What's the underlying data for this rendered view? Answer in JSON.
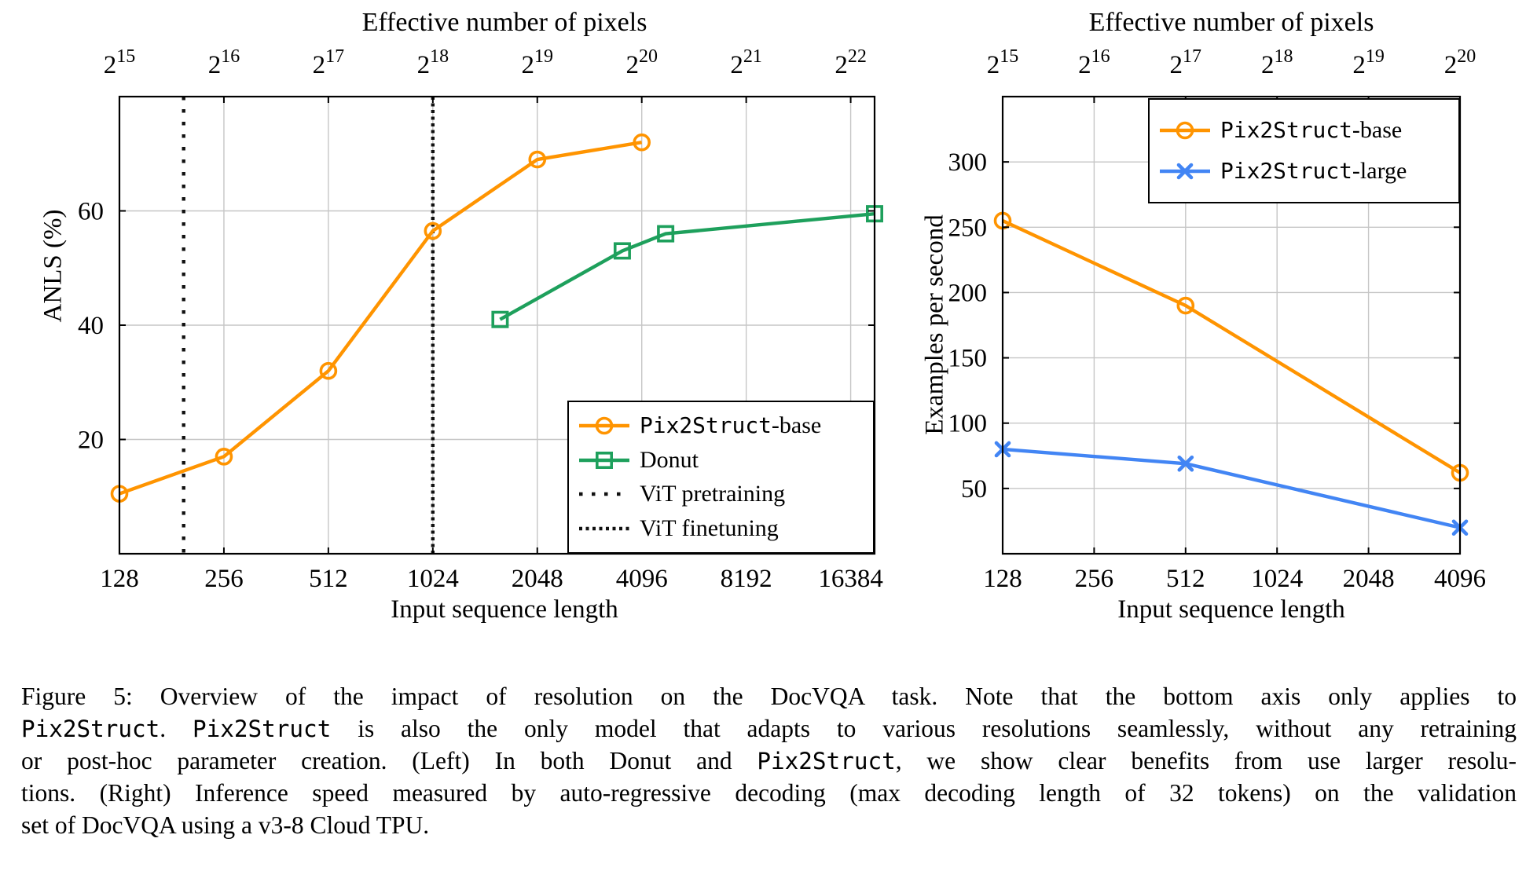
{
  "chart_data": [
    {
      "id": "left",
      "type": "line",
      "title": "Effective number of pixels",
      "xlabel": "Input sequence length",
      "ylabel": "ANLS (%)",
      "x_scale": "log2",
      "x_range": [
        128,
        19200
      ],
      "y_range": [
        0,
        80
      ],
      "x_ticks": [
        128,
        256,
        512,
        1024,
        2048,
        4096,
        8192,
        16384
      ],
      "y_ticks": [
        20,
        40,
        60
      ],
      "top_axis_exponents": [
        15,
        16,
        17,
        18,
        19,
        20,
        21,
        22
      ],
      "grid": true,
      "grid_color": "#c6c6c6",
      "series": [
        {
          "name": "Pix2Struct-base",
          "color": "#FF9400",
          "marker": "circle",
          "x": [
            128,
            256,
            512,
            1024,
            2048,
            4096
          ],
          "y": [
            10.5,
            17,
            32,
            56.5,
            69,
            72
          ]
        },
        {
          "name": "Donut",
          "color": "#1EA05C",
          "marker": "square",
          "x": [
            1600,
            3600,
            4800,
            19200
          ],
          "y": [
            41,
            53,
            56,
            59.5
          ]
        }
      ],
      "vlines": [
        {
          "name": "ViT pretraining",
          "x": 196,
          "style": "sparse-dotted",
          "color": "#111111"
        },
        {
          "name": "ViT finetuning",
          "x": 1024,
          "style": "dense-dotted",
          "color": "#111111"
        }
      ],
      "legend": {
        "position": "south-east",
        "rows": [
          {
            "kind": "series",
            "index": 0,
            "parts": [
              {
                "text": "Pix2Struct",
                "mono": true
              },
              {
                "text": "-base",
                "mono": false
              }
            ]
          },
          {
            "kind": "series",
            "index": 1,
            "parts": [
              {
                "text": "Donut",
                "mono": false
              }
            ]
          },
          {
            "kind": "vline",
            "index": 0,
            "parts": [
              {
                "text": "ViT pretraining",
                "mono": false
              }
            ]
          },
          {
            "kind": "vline",
            "index": 1,
            "parts": [
              {
                "text": "ViT finetuning",
                "mono": false
              }
            ]
          }
        ]
      }
    },
    {
      "id": "right",
      "type": "line",
      "title": "Effective number of pixels",
      "xlabel": "Input sequence length",
      "ylabel": "Examples per second",
      "x_scale": "log2",
      "x_range": [
        128,
        4096
      ],
      "y_range": [
        0,
        350
      ],
      "x_ticks": [
        128,
        256,
        512,
        1024,
        2048,
        4096
      ],
      "y_ticks": [
        50,
        100,
        150,
        200,
        250,
        300
      ],
      "top_axis_exponents": [
        15,
        16,
        17,
        18,
        19,
        20
      ],
      "grid": true,
      "grid_color": "#c6c6c6",
      "series": [
        {
          "name": "Pix2Struct-base",
          "color": "#FF9400",
          "marker": "circle",
          "x": [
            128,
            512,
            4096
          ],
          "y": [
            255,
            190,
            62
          ]
        },
        {
          "name": "Pix2Struct-large",
          "color": "#4285F4",
          "marker": "x",
          "x": [
            128,
            512,
            4096
          ],
          "y": [
            80,
            69,
            20
          ]
        }
      ],
      "vlines": [],
      "legend": {
        "position": "north-east",
        "rows": [
          {
            "kind": "series",
            "index": 0,
            "parts": [
              {
                "text": "Pix2Struct",
                "mono": true
              },
              {
                "text": "-base",
                "mono": false
              }
            ]
          },
          {
            "kind": "series",
            "index": 1,
            "parts": [
              {
                "text": "Pix2Struct",
                "mono": true
              },
              {
                "text": "-large",
                "mono": false
              }
            ]
          }
        ]
      }
    }
  ],
  "caption": {
    "figure_label": "Figure 5:",
    "lines": [
      {
        "justify": true,
        "segments": [
          {
            "text": "Figure 5:  Overview of the impact of resolution on the DocVQA task.  Note that the bottom axis only applies to",
            "mono": false
          }
        ]
      },
      {
        "justify": true,
        "segments": [
          {
            "text": "Pix2Struct",
            "mono": true
          },
          {
            "text": ". ",
            "mono": false
          },
          {
            "text": "Pix2Struct",
            "mono": true
          },
          {
            "text": " is also the only model that adapts to various resolutions seamlessly, without any retraining",
            "mono": false
          }
        ]
      },
      {
        "justify": true,
        "segments": [
          {
            "text": "or post-hoc parameter creation.  (Left) In both Donut and ",
            "mono": false
          },
          {
            "text": "Pix2Struct",
            "mono": true
          },
          {
            "text": ", we show clear benefits from use larger resolu-",
            "mono": false
          }
        ]
      },
      {
        "justify": true,
        "segments": [
          {
            "text": "tions. (Right) Inference speed measured by auto-regressive decoding (max decoding length of 32 tokens) on the validation",
            "mono": false
          }
        ]
      },
      {
        "justify": false,
        "segments": [
          {
            "text": "set of DocVQA using a v3-8 Cloud TPU.",
            "mono": false
          }
        ]
      }
    ]
  }
}
